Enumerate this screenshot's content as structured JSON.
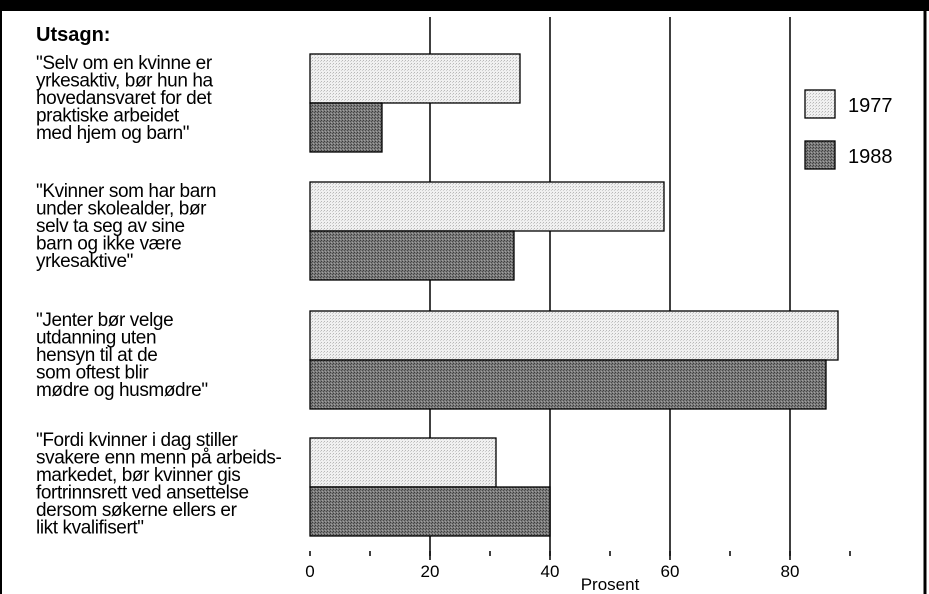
{
  "top_banner": "",
  "chart_data": {
    "type": "bar",
    "orientation": "horizontal",
    "heading": "Utsagn:",
    "xlabel": "Prosent",
    "xlim": [
      0,
      90
    ],
    "x_ticks": [
      0,
      20,
      40,
      60,
      80
    ],
    "grid": "vertical major lines at 20, 40, 60, 80",
    "legend_position": "right",
    "categories": [
      [
        "\"Selv om en kvinne er",
        "yrkesaktiv, bør hun ha",
        "hovedansvaret for det",
        "praktiske arbeidet",
        "med hjem og barn\""
      ],
      [
        "\"Kvinner som har barn",
        "under skolealder, bør",
        "selv ta seg av sine",
        "barn og ikke være",
        "yrkesaktive\""
      ],
      [
        "\"Jenter bør velge",
        "utdanning uten",
        "hensyn til at de",
        "som oftest blir",
        "mødre og husmødre\""
      ],
      [
        "\"Fordi kvinner i dag stiller",
        "svakere enn menn på arbeids-",
        "markedet, bør kvinner gis",
        "fortrinnsrett ved ansettelse",
        "dersom søkerne ellers er",
        "likt kvalifisert\""
      ]
    ],
    "series": [
      {
        "name": "1977",
        "color": "#e4e4e4",
        "values": [
          35,
          59,
          88,
          31
        ]
      },
      {
        "name": "1988",
        "color": "#6f6f6f",
        "values": [
          12,
          34,
          86,
          40
        ]
      }
    ]
  }
}
